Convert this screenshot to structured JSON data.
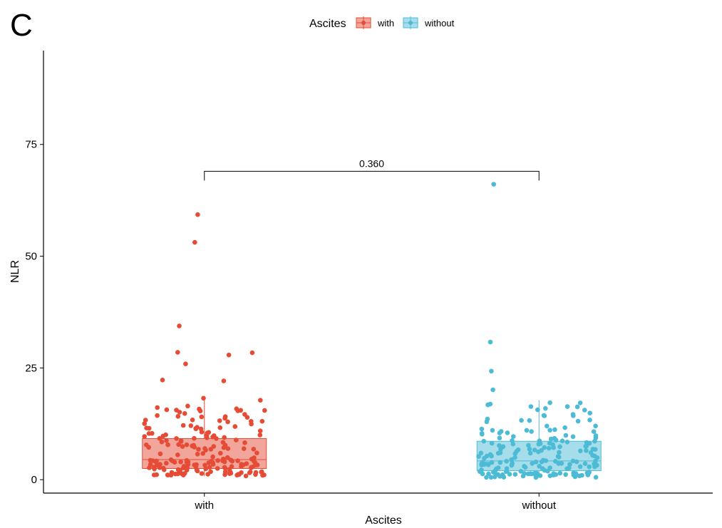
{
  "panel_label": "C",
  "chart_data": {
    "type": "boxplot",
    "xlabel": "Ascites",
    "ylabel": "NLR",
    "categories": [
      "with",
      "without"
    ],
    "ylim": [
      -3,
      96
    ],
    "yticks": [
      0,
      25,
      50,
      75
    ],
    "ytick_labels": [
      "0",
      "25",
      "50",
      "75"
    ],
    "grid": false,
    "legend": {
      "title": "Ascites",
      "position": "top",
      "entries": [
        "with",
        "without"
      ]
    },
    "colors": {
      "with": "#E64B35",
      "without": "#4DBBD5"
    },
    "boxes": [
      {
        "group": "with",
        "q1": 2.5,
        "median": 4.5,
        "q3": 9.2,
        "whisker_low": 0.8,
        "whisker_high": 18.3
      },
      {
        "group": "without",
        "q1": 2.0,
        "median": 4.2,
        "q3": 8.6,
        "whisker_low": 0.5,
        "whisker_high": 17.8
      }
    ],
    "outliers": {
      "with": [
        59.3,
        53.1,
        34.4,
        28.5,
        28.4,
        27.9,
        25.9,
        22.3,
        22.1
      ],
      "without": [
        66.1,
        30.8,
        24.3,
        20.1
      ]
    },
    "comparison": {
      "groups": [
        "with",
        "without"
      ],
      "p_value": "0.360",
      "y": 69
    }
  }
}
